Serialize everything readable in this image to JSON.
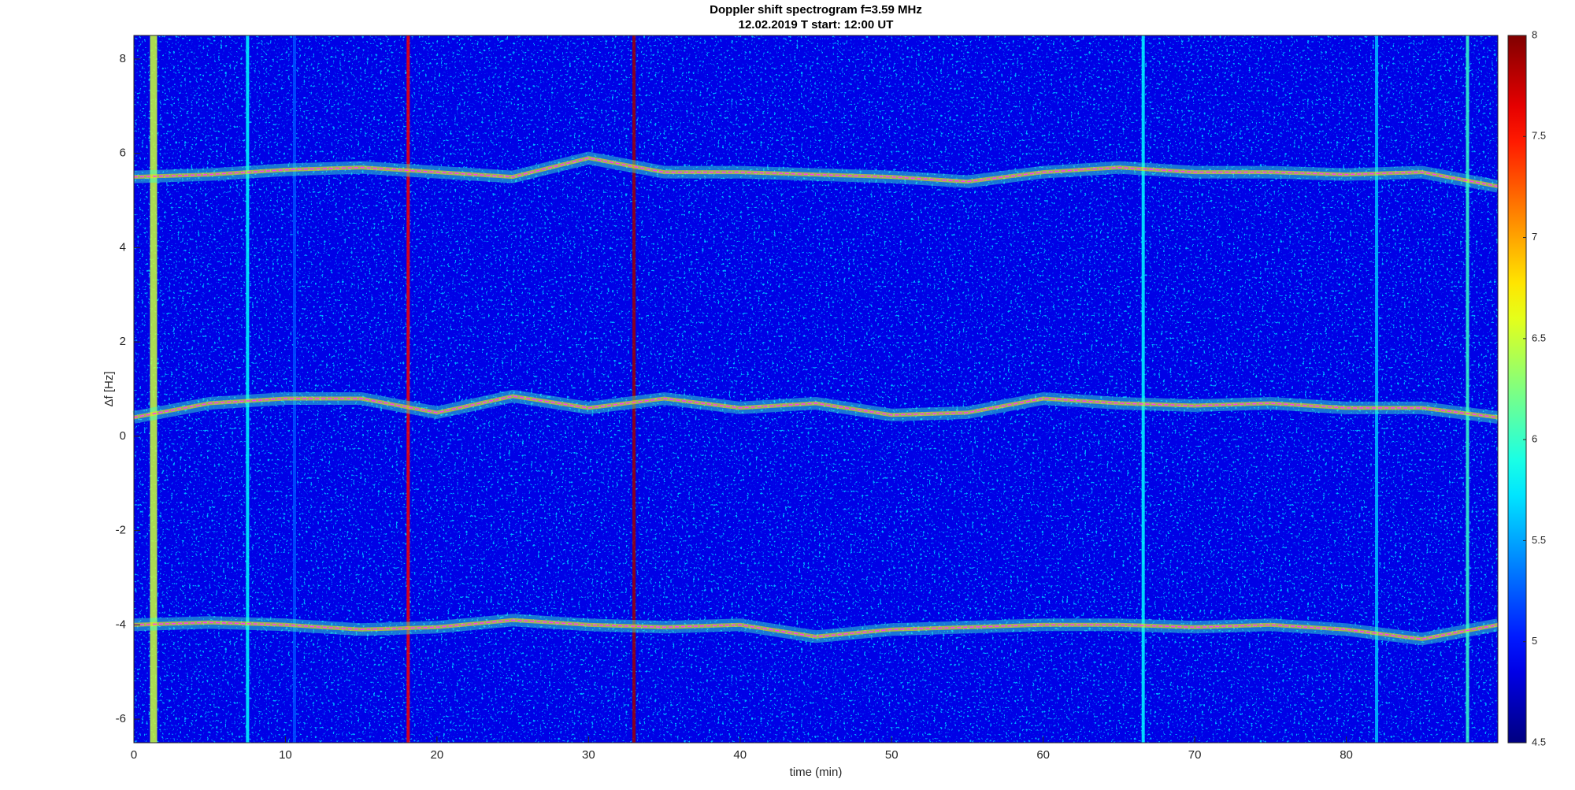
{
  "chart_data": {
    "type": "spectrogram",
    "title": "Doppler shift spectrogram f=3.59 MHz",
    "subtitle": "12.02.2019   T start: 12:00 UT",
    "x_label": "time (min)",
    "y_label": "Δf [Hz]",
    "xlim": [
      0,
      90
    ],
    "ylim": [
      -6.5,
      8.5
    ],
    "xticks": [
      0,
      10,
      20,
      30,
      40,
      50,
      60,
      70,
      80
    ],
    "yticks": [
      -6,
      -4,
      -2,
      0,
      2,
      4,
      6,
      8
    ],
    "clim": [
      4.5,
      8
    ],
    "cticks": [
      4.5,
      5,
      5.5,
      6,
      6.5,
      7,
      7.5,
      8
    ],
    "trace_color": "#ff33ff",
    "trace_level": 6,
    "x": [
      0,
      5,
      10,
      15,
      20,
      25,
      30,
      35,
      40,
      45,
      50,
      55,
      60,
      65,
      70,
      75,
      80,
      85,
      90
    ],
    "series": [
      {
        "values": [
          5.5,
          5.55,
          5.65,
          5.7,
          5.6,
          5.5,
          5.9,
          5.6,
          5.6,
          5.55,
          5.5,
          5.4,
          5.6,
          5.7,
          5.6,
          5.6,
          5.55,
          5.6,
          5.3
        ]
      },
      {
        "values": [
          0.4,
          0.7,
          0.8,
          0.8,
          0.5,
          0.85,
          0.6,
          0.8,
          0.6,
          0.7,
          0.45,
          0.5,
          0.8,
          0.7,
          0.65,
          0.7,
          0.6,
          0.6,
          0.4
        ]
      },
      {
        "values": [
          -4.0,
          -3.95,
          -4.0,
          -4.1,
          -4.05,
          -3.9,
          -4.0,
          -4.05,
          -4.0,
          -4.25,
          -4.1,
          -4.05,
          -4.0,
          -4.0,
          -4.05,
          -4.0,
          -4.1,
          -4.3,
          -4.0
        ]
      }
    ],
    "stripes": {
      "x": [
        1.3,
        7.5,
        10.6,
        18.1,
        33.0,
        66.6,
        82.0,
        88.0
      ],
      "values": [
        6.5,
        5.8,
        5.2,
        7.6,
        7.9,
        5.8,
        5.6,
        6.0
      ]
    }
  }
}
